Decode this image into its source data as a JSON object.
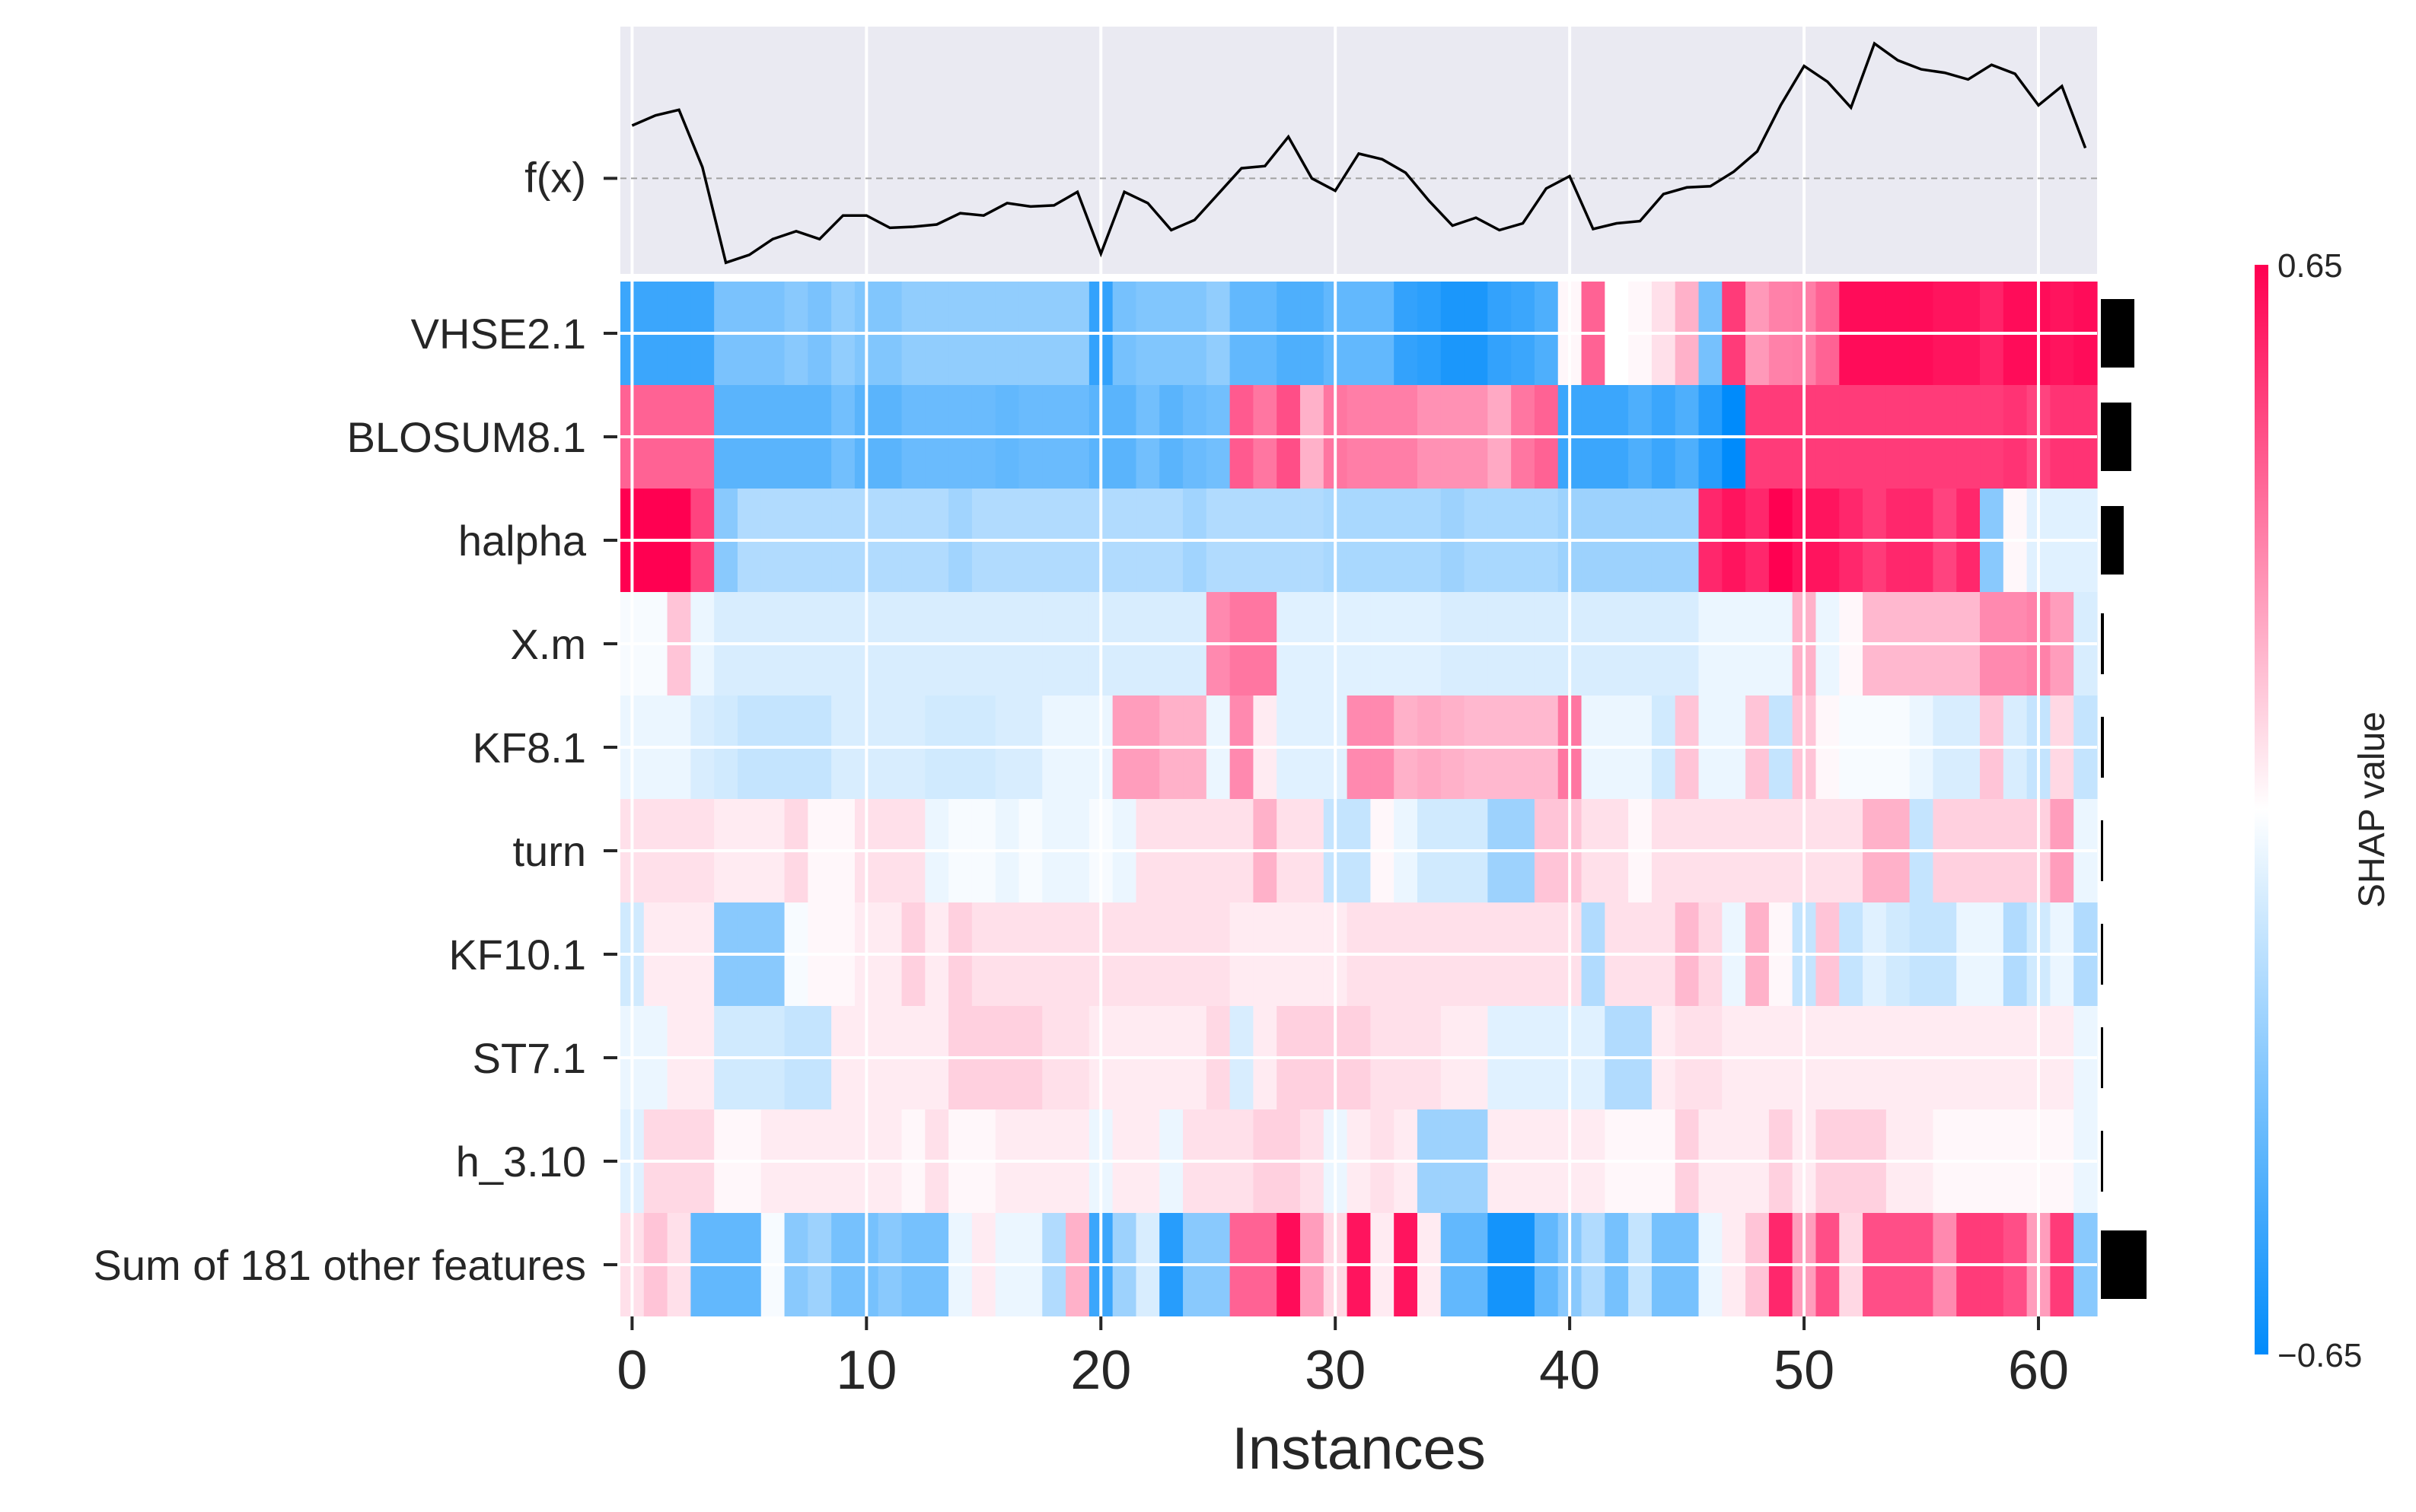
{
  "chart_data": {
    "type": "heatmap",
    "title": "",
    "xlabel": "Instances",
    "ylabel": "",
    "x_ticks": [
      0,
      10,
      20,
      30,
      40,
      50,
      60
    ],
    "xlim": [
      -0.5,
      62.5
    ],
    "fx_label": "f(x)",
    "fx_values": [
      0.47,
      0.56,
      0.61,
      0.1,
      -0.75,
      -0.68,
      -0.54,
      -0.47,
      -0.54,
      -0.33,
      -0.33,
      -0.44,
      -0.43,
      -0.41,
      -0.31,
      -0.33,
      -0.22,
      -0.25,
      -0.24,
      -0.12,
      -0.67,
      -0.12,
      -0.22,
      -0.46,
      -0.37,
      -0.14,
      0.09,
      0.11,
      0.37,
      0.0,
      -0.11,
      0.22,
      0.17,
      0.05,
      -0.2,
      -0.42,
      -0.35,
      -0.46,
      -0.4,
      -0.09,
      0.02,
      -0.45,
      -0.4,
      -0.38,
      -0.14,
      -0.08,
      -0.07,
      0.06,
      0.24,
      0.65,
      1.0,
      0.86,
      0.63,
      1.2,
      1.05,
      0.97,
      0.94,
      0.88,
      1.01,
      0.93,
      0.65,
      0.82,
      0.27
    ],
    "fx_baseline": 0.0,
    "colorbar": {
      "title": "SHAP value",
      "max_label": "0.65",
      "min_label": "−0.65",
      "low_color": "#008bfb",
      "high_color": "#ff0051"
    },
    "features": [
      {
        "name": "VHSE2.1",
        "importance": 0.22,
        "values": [
          -0.5,
          -0.5,
          -0.5,
          -0.5,
          -0.34,
          -0.34,
          -0.34,
          -0.3,
          -0.34,
          -0.28,
          -0.32,
          -0.32,
          -0.28,
          -0.28,
          -0.28,
          -0.28,
          -0.28,
          -0.28,
          -0.28,
          -0.28,
          -0.52,
          -0.35,
          -0.32,
          -0.32,
          -0.32,
          -0.28,
          -0.4,
          -0.4,
          -0.45,
          -0.45,
          -0.4,
          -0.4,
          -0.4,
          -0.52,
          -0.54,
          -0.58,
          -0.58,
          -0.52,
          -0.5,
          -0.45,
          0.02,
          0.4,
          0.0,
          0.02,
          0.08,
          0.2,
          -0.35,
          0.5,
          0.26,
          0.32,
          0.33,
          0.4,
          0.62,
          0.62,
          0.62,
          0.62,
          0.6,
          0.6,
          0.56,
          0.62,
          0.62,
          0.6,
          0.62
        ]
      },
      {
        "name": "BLOSUM8.1",
        "importance": 0.2,
        "values": [
          0.4,
          0.4,
          0.4,
          0.4,
          -0.42,
          -0.42,
          -0.42,
          -0.42,
          -0.42,
          -0.36,
          -0.42,
          -0.42,
          -0.38,
          -0.38,
          -0.38,
          -0.38,
          -0.4,
          -0.38,
          -0.38,
          -0.38,
          -0.42,
          -0.42,
          -0.36,
          -0.42,
          -0.38,
          -0.36,
          0.42,
          0.35,
          0.45,
          0.2,
          0.35,
          0.33,
          0.33,
          0.33,
          0.28,
          0.28,
          0.28,
          0.22,
          0.35,
          0.4,
          -0.5,
          -0.5,
          -0.5,
          -0.45,
          -0.5,
          -0.45,
          -0.55,
          -0.65,
          0.5,
          0.5,
          0.5,
          0.5,
          0.5,
          0.5,
          0.5,
          0.5,
          0.5,
          0.5,
          0.5,
          0.52,
          0.48,
          0.52,
          0.52
        ]
      },
      {
        "name": "halpha",
        "importance": 0.15,
        "values": [
          0.65,
          0.65,
          0.65,
          0.48,
          -0.3,
          -0.2,
          -0.2,
          -0.2,
          -0.2,
          -0.2,
          -0.2,
          -0.2,
          -0.2,
          -0.2,
          -0.24,
          -0.2,
          -0.2,
          -0.2,
          -0.2,
          -0.2,
          -0.2,
          -0.2,
          -0.2,
          -0.2,
          -0.24,
          -0.2,
          -0.2,
          -0.2,
          -0.2,
          -0.2,
          -0.22,
          -0.22,
          -0.22,
          -0.22,
          -0.22,
          -0.25,
          -0.22,
          -0.22,
          -0.22,
          -0.22,
          -0.25,
          -0.25,
          -0.25,
          -0.25,
          -0.25,
          -0.25,
          0.55,
          0.6,
          0.55,
          0.65,
          0.6,
          0.6,
          0.55,
          0.5,
          0.55,
          0.55,
          0.48,
          0.55,
          -0.3,
          0.02,
          -0.08,
          -0.08,
          -0.08
        ]
      },
      {
        "name": "X.m",
        "importance": 0.02,
        "values": [
          -0.02,
          -0.02,
          0.15,
          -0.05,
          -0.1,
          -0.1,
          -0.1,
          -0.1,
          -0.1,
          -0.1,
          -0.1,
          -0.1,
          -0.1,
          -0.1,
          -0.1,
          -0.1,
          -0.1,
          -0.1,
          -0.1,
          -0.1,
          -0.1,
          -0.1,
          -0.1,
          -0.1,
          -0.1,
          0.3,
          0.35,
          0.35,
          -0.08,
          -0.08,
          -0.08,
          -0.08,
          -0.08,
          -0.08,
          -0.08,
          -0.1,
          -0.1,
          -0.1,
          -0.1,
          -0.1,
          -0.1,
          -0.1,
          -0.1,
          -0.1,
          -0.1,
          -0.1,
          -0.05,
          -0.05,
          -0.05,
          -0.05,
          0.2,
          -0.05,
          0.02,
          0.18,
          0.18,
          0.18,
          0.18,
          0.18,
          0.3,
          0.3,
          0.32,
          0.25,
          -0.1
        ]
      },
      {
        "name": "KF8.1",
        "importance": 0.02,
        "values": [
          -0.05,
          -0.05,
          -0.05,
          -0.1,
          -0.12,
          -0.15,
          -0.15,
          -0.15,
          -0.15,
          -0.1,
          -0.1,
          -0.1,
          -0.1,
          -0.12,
          -0.12,
          -0.12,
          -0.1,
          -0.1,
          -0.05,
          -0.05,
          -0.05,
          0.25,
          0.25,
          0.2,
          0.2,
          -0.05,
          0.3,
          0.05,
          -0.08,
          -0.08,
          -0.08,
          0.3,
          0.3,
          0.2,
          0.22,
          0.2,
          0.18,
          0.18,
          0.18,
          0.18,
          0.35,
          -0.05,
          -0.05,
          -0.05,
          -0.12,
          0.15,
          -0.05,
          -0.05,
          0.15,
          -0.15,
          0.15,
          0.02,
          -0.02,
          -0.02,
          -0.02,
          -0.05,
          -0.1,
          -0.1,
          0.15,
          -0.1,
          -0.15,
          0.1,
          -0.15
        ]
      },
      {
        "name": "turn",
        "importance": 0.01,
        "values": [
          0.08,
          0.08,
          0.08,
          0.08,
          0.05,
          0.05,
          0.05,
          0.1,
          0.02,
          0.02,
          0.08,
          0.08,
          0.08,
          -0.05,
          -0.02,
          -0.02,
          -0.05,
          -0.02,
          -0.05,
          -0.05,
          -0.02,
          -0.05,
          0.08,
          0.08,
          0.08,
          0.08,
          0.08,
          0.2,
          0.08,
          0.08,
          -0.15,
          -0.15,
          0.02,
          -0.05,
          -0.12,
          -0.12,
          -0.12,
          -0.25,
          -0.25,
          0.15,
          0.15,
          0.08,
          0.08,
          0.02,
          0.08,
          0.08,
          0.08,
          0.08,
          0.08,
          0.08,
          0.08,
          0.08,
          0.08,
          0.2,
          0.2,
          -0.15,
          0.12,
          0.12,
          0.12,
          0.12,
          0.12,
          0.25,
          -0.05
        ]
      },
      {
        "name": "KF10.1",
        "importance": 0.01,
        "values": [
          -0.12,
          0.05,
          0.05,
          0.05,
          -0.3,
          -0.3,
          -0.3,
          -0.02,
          0.02,
          0.02,
          0.05,
          0.05,
          0.12,
          0.05,
          0.12,
          0.08,
          0.08,
          0.08,
          0.08,
          0.08,
          0.08,
          0.08,
          0.08,
          0.08,
          0.08,
          0.08,
          0.05,
          0.05,
          0.05,
          0.05,
          0.05,
          0.08,
          0.08,
          0.08,
          0.08,
          0.08,
          0.08,
          0.08,
          0.08,
          0.08,
          0.08,
          -0.2,
          0.08,
          0.08,
          0.08,
          0.18,
          0.1,
          -0.05,
          0.2,
          0.02,
          -0.15,
          0.15,
          -0.15,
          -0.08,
          -0.12,
          -0.15,
          -0.15,
          -0.05,
          -0.05,
          -0.2,
          -0.12,
          -0.05,
          -0.2
        ]
      },
      {
        "name": "ST7.1",
        "importance": 0.0,
        "values": [
          -0.05,
          -0.05,
          0.05,
          0.05,
          -0.12,
          -0.12,
          -0.12,
          -0.15,
          -0.15,
          0.05,
          0.05,
          0.05,
          0.05,
          0.05,
          0.12,
          0.12,
          0.12,
          0.12,
          0.08,
          0.08,
          0.05,
          0.05,
          0.05,
          0.05,
          0.05,
          0.1,
          -0.1,
          0.05,
          0.12,
          0.12,
          0.12,
          0.12,
          0.08,
          0.08,
          0.08,
          0.05,
          0.05,
          -0.08,
          -0.08,
          -0.08,
          -0.08,
          -0.08,
          -0.2,
          -0.2,
          0.05,
          0.08,
          0.08,
          0.05,
          0.05,
          0.05,
          0.05,
          0.05,
          0.05,
          0.05,
          0.05,
          0.05,
          0.05,
          0.05,
          0.05,
          0.05,
          0.05,
          0.05,
          -0.05
        ]
      },
      {
        "name": "h_3.10",
        "importance": 0.0,
        "values": [
          -0.08,
          0.1,
          0.1,
          0.1,
          0.02,
          0.02,
          0.05,
          0.05,
          0.05,
          0.05,
          0.05,
          0.05,
          0.02,
          0.08,
          0.02,
          0.02,
          0.05,
          0.05,
          0.05,
          0.05,
          -0.05,
          0.05,
          0.05,
          -0.05,
          0.08,
          0.08,
          0.08,
          0.12,
          0.12,
          0.08,
          -0.05,
          0.05,
          0.08,
          0.05,
          -0.25,
          -0.25,
          -0.25,
          0.05,
          0.05,
          0.05,
          0.05,
          0.05,
          0.02,
          0.02,
          0.02,
          0.12,
          0.05,
          0.05,
          0.05,
          0.12,
          0.05,
          0.12,
          0.12,
          0.12,
          0.05,
          0.05,
          0.02,
          0.02,
          0.02,
          0.02,
          0.02,
          0.02,
          -0.05
        ]
      },
      {
        "name": "Sum of 181 other features",
        "importance": 0.3,
        "values": [
          0.08,
          0.15,
          0.08,
          -0.4,
          -0.4,
          -0.4,
          -0.02,
          -0.3,
          -0.25,
          -0.35,
          -0.35,
          -0.3,
          -0.35,
          -0.35,
          -0.05,
          0.05,
          -0.05,
          -0.05,
          -0.2,
          0.2,
          -0.5,
          -0.25,
          -0.1,
          -0.55,
          -0.3,
          -0.3,
          0.4,
          0.4,
          0.62,
          0.25,
          0.1,
          0.6,
          0.05,
          0.6,
          0.05,
          -0.4,
          -0.4,
          -0.6,
          -0.6,
          -0.4,
          -0.3,
          -0.2,
          -0.35,
          -0.15,
          -0.35,
          -0.35,
          -0.05,
          0.05,
          0.15,
          0.55,
          0.25,
          0.45,
          0.1,
          0.45,
          0.45,
          0.45,
          0.3,
          0.5,
          0.5,
          0.45,
          0.25,
          0.5,
          -0.3
        ]
      }
    ]
  }
}
